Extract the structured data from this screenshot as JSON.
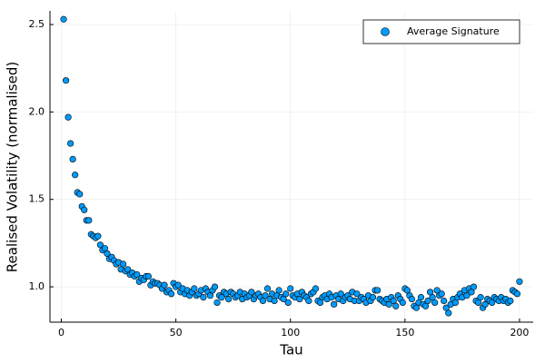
{
  "chart_data": {
    "type": "scatter",
    "x_label": "Tau",
    "y_label": "Realised Volatility (normalised)",
    "x": [
      1,
      2,
      3,
      4,
      5,
      6,
      7,
      8,
      9,
      10,
      11,
      12,
      13,
      14,
      15,
      16,
      17,
      18,
      19,
      20,
      21,
      22,
      23,
      24,
      25,
      26,
      27,
      28,
      29,
      30,
      31,
      32,
      33,
      34,
      35,
      36,
      37,
      38,
      39,
      40,
      41,
      42,
      43,
      44,
      45,
      46,
      47,
      48,
      49,
      50,
      51,
      52,
      53,
      54,
      55,
      56,
      57,
      58,
      59,
      60,
      61,
      62,
      63,
      64,
      65,
      66,
      67,
      68,
      69,
      70,
      71,
      72,
      73,
      74,
      75,
      76,
      77,
      78,
      79,
      80,
      81,
      82,
      83,
      84,
      85,
      86,
      87,
      88,
      89,
      90,
      91,
      92,
      93,
      94,
      95,
      96,
      97,
      98,
      99,
      100,
      101,
      102,
      103,
      104,
      105,
      106,
      107,
      108,
      109,
      110,
      111,
      112,
      113,
      114,
      115,
      116,
      117,
      118,
      119,
      120,
      121,
      122,
      123,
      124,
      125,
      126,
      127,
      128,
      129,
      130,
      131,
      132,
      133,
      134,
      135,
      136,
      137,
      138,
      139,
      140,
      141,
      142,
      143,
      144,
      145,
      146,
      147,
      148,
      149,
      150,
      151,
      152,
      153,
      154,
      155,
      156,
      157,
      158,
      159,
      160,
      161,
      162,
      163,
      164,
      165,
      166,
      167,
      168,
      169,
      170,
      171,
      172,
      173,
      174,
      175,
      176,
      177,
      178,
      179,
      180,
      181,
      182,
      183,
      184,
      185,
      186,
      187,
      188,
      189,
      190,
      191,
      192,
      193,
      194,
      195,
      196,
      197,
      198,
      199,
      200
    ],
    "series": [
      {
        "name": "Average Signature",
        "color": "#009af9",
        "values": [
          2.53,
          2.18,
          1.97,
          1.82,
          1.73,
          1.64,
          1.54,
          1.53,
          1.46,
          1.44,
          1.38,
          1.38,
          1.3,
          1.29,
          1.28,
          1.29,
          1.24,
          1.21,
          1.22,
          1.19,
          1.16,
          1.17,
          1.15,
          1.13,
          1.14,
          1.1,
          1.13,
          1.09,
          1.1,
          1.07,
          1.08,
          1.06,
          1.07,
          1.03,
          1.05,
          1.04,
          1.06,
          1.06,
          1.01,
          1.03,
          1.02,
          1.02,
          1.01,
          0.99,
          1.01,
          0.97,
          0.98,
          0.96,
          1.02,
          1.0,
          1.01,
          0.97,
          0.99,
          0.96,
          0.98,
          0.95,
          0.97,
          0.99,
          0.95,
          0.96,
          0.98,
          0.94,
          0.99,
          0.97,
          0.95,
          0.98,
          1.0,
          0.91,
          0.95,
          0.94,
          0.97,
          0.96,
          0.93,
          0.97,
          0.96,
          0.94,
          0.95,
          0.97,
          0.93,
          0.96,
          0.94,
          0.95,
          0.97,
          0.93,
          0.95,
          0.96,
          0.94,
          0.92,
          0.95,
          0.99,
          0.93,
          0.96,
          0.92,
          0.95,
          0.98,
          0.94,
          0.93,
          0.96,
          0.91,
          0.99,
          0.95,
          0.94,
          0.96,
          0.93,
          0.97,
          0.95,
          0.94,
          0.92,
          0.96,
          0.97,
          0.99,
          0.92,
          0.91,
          0.94,
          0.95,
          0.93,
          0.96,
          0.94,
          0.9,
          0.95,
          0.93,
          0.96,
          0.92,
          0.94,
          0.95,
          0.93,
          0.97,
          0.92,
          0.96,
          0.92,
          0.94,
          0.93,
          0.91,
          0.95,
          0.92,
          0.94,
          0.98,
          0.98,
          0.93,
          0.92,
          0.91,
          0.93,
          0.9,
          0.94,
          0.92,
          0.89,
          0.95,
          0.93,
          0.91,
          0.99,
          0.98,
          0.95,
          0.93,
          0.89,
          0.88,
          0.91,
          0.94,
          0.9,
          0.89,
          0.92,
          0.97,
          0.94,
          0.91,
          0.98,
          0.95,
          0.96,
          0.92,
          0.88,
          0.85,
          0.9,
          0.93,
          0.91,
          0.94,
          0.96,
          0.94,
          0.98,
          0.95,
          0.99,
          0.97,
          1.0,
          0.92,
          0.91,
          0.94,
          0.88,
          0.9,
          0.93,
          0.92,
          0.91,
          0.94,
          0.93,
          0.92,
          0.94,
          0.92,
          0.93,
          0.91,
          0.92,
          0.98,
          0.97,
          0.96,
          1.03
        ]
      }
    ],
    "xlim": [
      -4.97,
      205.97
    ],
    "xticks": [
      0,
      50,
      100,
      150,
      200
    ],
    "ylim": [
      0.798,
      2.578
    ],
    "yticks": [
      {
        "value": 1,
        "label": "1.0"
      },
      {
        "value": 1.5,
        "label": "1.5"
      },
      {
        "value": 2,
        "label": "2.0"
      },
      {
        "value": 2.5,
        "label": "2.5"
      }
    ],
    "grid": true,
    "legend_position": "top-right"
  }
}
